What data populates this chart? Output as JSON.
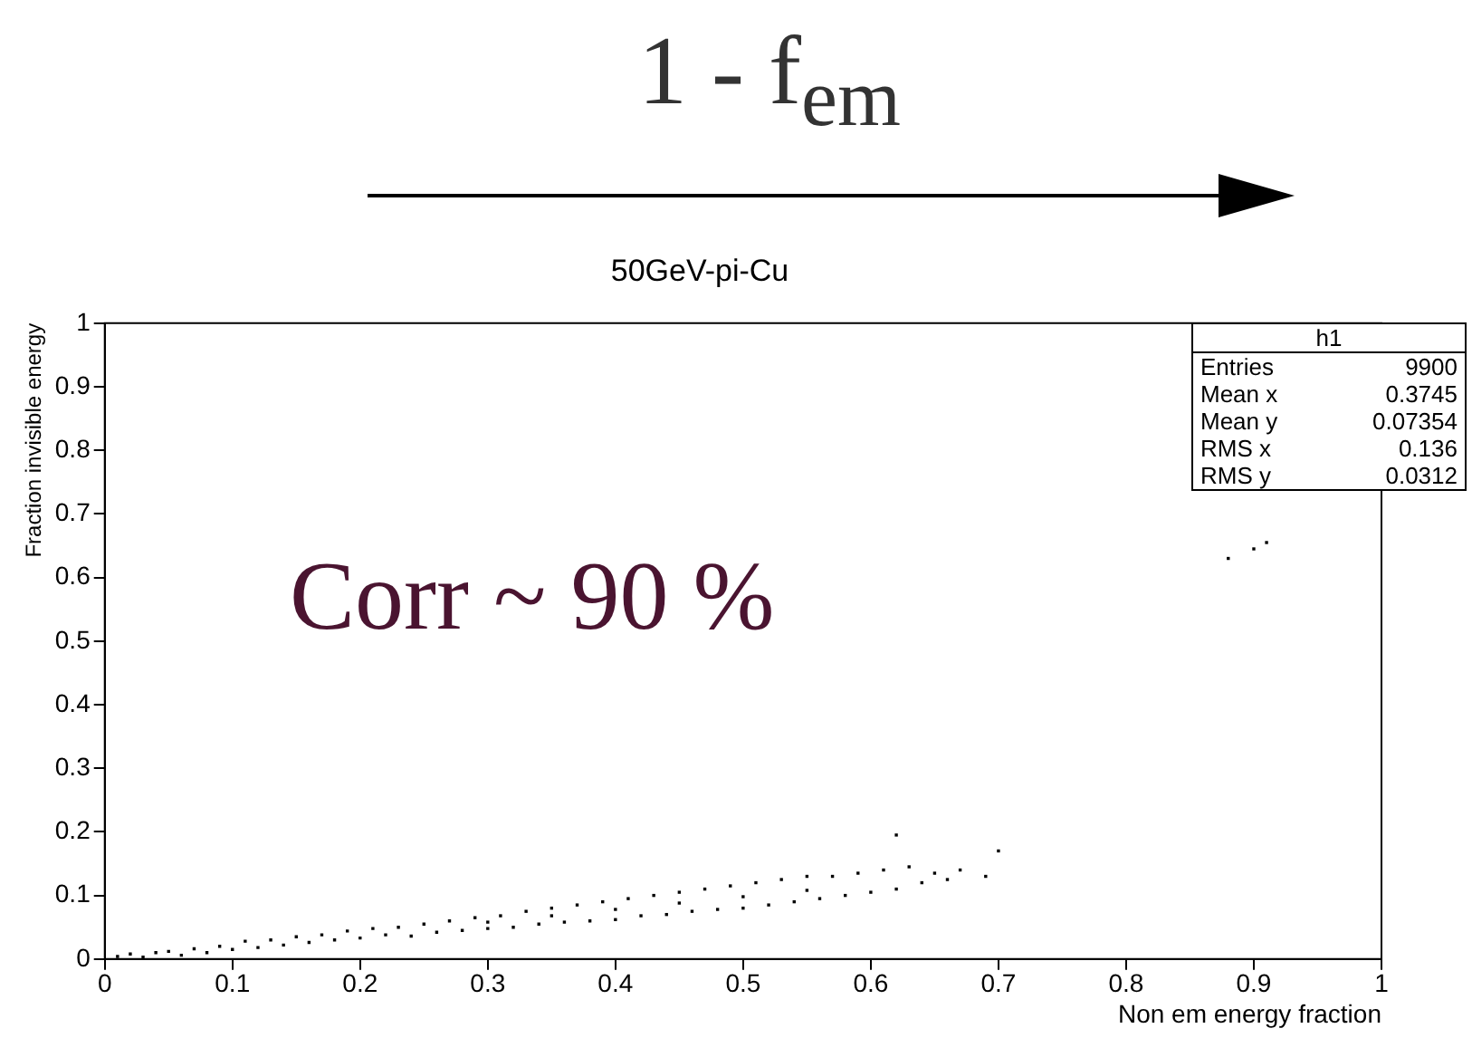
{
  "chart_data": {
    "type": "scatter",
    "title": "50GeV-pi-Cu",
    "xlabel": "Non em energy fraction",
    "ylabel": "Fraction invisible energy",
    "annotations": [
      "1 - f$_{em}$",
      "Corr ~ 90 %",
      "h1",
      "Entries 9900",
      "Mean x 0.3745",
      "Mean y 0.07354",
      "RMS x 0.136",
      "RMS y 0.0312"
    ],
    "x": [
      0.01,
      0.02,
      0.03,
      0.04,
      0.05,
      0.06,
      0.07,
      0.08,
      0.09,
      0.1,
      0.11,
      0.12,
      0.13,
      0.14,
      0.15,
      0.16,
      0.17,
      0.18,
      0.19,
      0.2,
      0.21,
      0.22,
      0.23,
      0.24,
      0.25,
      0.26,
      0.27,
      0.28,
      0.29,
      0.3,
      0.31,
      0.32,
      0.33,
      0.34,
      0.35,
      0.36,
      0.37,
      0.38,
      0.39,
      0.4,
      0.41,
      0.42,
      0.43,
      0.44,
      0.45,
      0.46,
      0.47,
      0.48,
      0.49,
      0.5,
      0.51,
      0.52,
      0.53,
      0.54,
      0.55,
      0.56,
      0.57,
      0.58,
      0.59,
      0.6,
      0.61,
      0.62,
      0.63,
      0.64,
      0.65,
      0.66,
      0.67,
      0.69,
      0.7,
      0.62,
      0.88,
      0.9,
      0.91,
      0.3,
      0.35,
      0.4,
      0.45,
      0.5,
      0.55
    ],
    "values": [
      0.004,
      0.008,
      0.003,
      0.01,
      0.012,
      0.006,
      0.016,
      0.01,
      0.02,
      0.015,
      0.028,
      0.018,
      0.03,
      0.022,
      0.035,
      0.026,
      0.038,
      0.03,
      0.044,
      0.033,
      0.048,
      0.038,
      0.05,
      0.036,
      0.055,
      0.042,
      0.06,
      0.045,
      0.065,
      0.048,
      0.068,
      0.05,
      0.075,
      0.055,
      0.08,
      0.058,
      0.085,
      0.06,
      0.09,
      0.062,
      0.095,
      0.068,
      0.1,
      0.07,
      0.105,
      0.075,
      0.11,
      0.078,
      0.115,
      0.08,
      0.12,
      0.085,
      0.125,
      0.09,
      0.13,
      0.095,
      0.13,
      0.1,
      0.135,
      0.105,
      0.14,
      0.11,
      0.145,
      0.12,
      0.135,
      0.125,
      0.14,
      0.13,
      0.17,
      0.195,
      0.63,
      0.645,
      0.655,
      0.058,
      0.068,
      0.078,
      0.088,
      0.098,
      0.108
    ],
    "color": "#000000",
    "marker": "square",
    "xlim": [
      0,
      1
    ],
    "ylim": [
      0,
      1
    ],
    "xticks": [
      0,
      0.1,
      0.2,
      0.3,
      0.4,
      0.5,
      0.6,
      0.7,
      0.8,
      0.9,
      1
    ],
    "yticks": [
      0,
      0.1,
      0.2,
      0.3,
      0.4,
      0.5,
      0.6,
      0.7,
      0.8,
      0.9,
      1
    ],
    "grid": false,
    "legend": false
  }
}
